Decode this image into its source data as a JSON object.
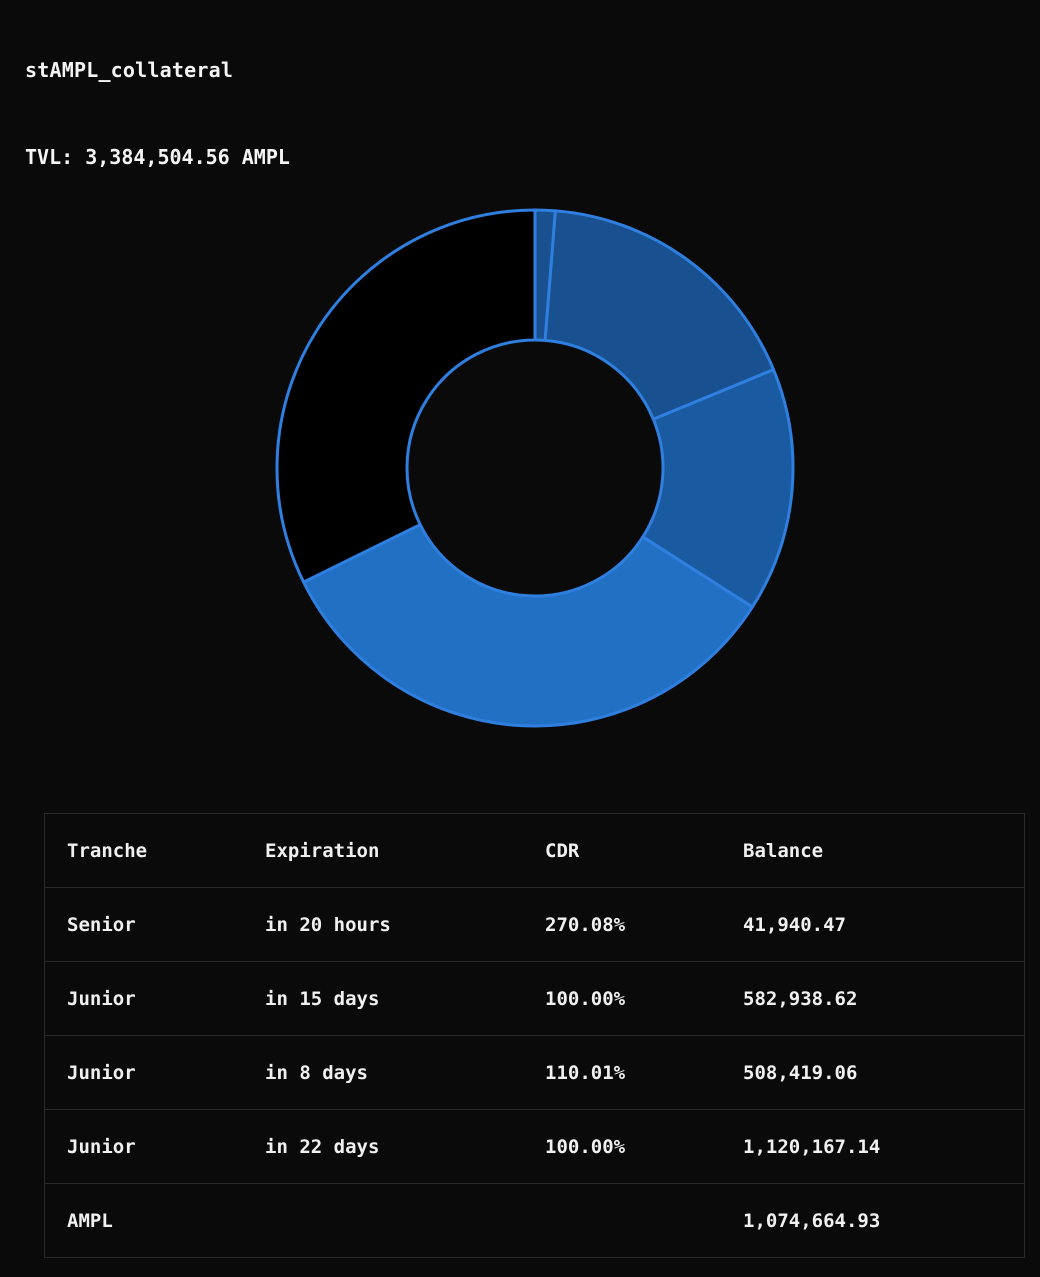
{
  "header": {
    "title": "stAMPL_collateral",
    "tvl_label": "TVL:",
    "tvl_value": "3,384,504.56",
    "tvl_unit": "AMPL"
  },
  "colors": {
    "background": "#0a0a0b",
    "stroke": "#2f7fe0",
    "slice_dark": "#185090",
    "slice_mid": "#1a5aa0",
    "slice_bright": "#2170c4",
    "slice_black": "#000000"
  },
  "chart_data": {
    "type": "pie",
    "values": [
      41940.47,
      582938.62,
      508419.06,
      1120167.14,
      1074664.93
    ],
    "categories": [
      "Senior",
      "Junior",
      "Junior",
      "Junior",
      "AMPL"
    ],
    "slice_colors": [
      "#185090",
      "#185090",
      "#1a5aa0",
      "#2170c4",
      "#000000"
    ],
    "donut": true
  },
  "table": {
    "headers": [
      "Tranche",
      "Expiration",
      "CDR",
      "Balance"
    ],
    "rows": [
      [
        "Senior",
        "in 20 hours",
        "270.08%",
        "41,940.47"
      ],
      [
        "Junior",
        "in 15 days",
        "100.00%",
        "582,938.62"
      ],
      [
        "Junior",
        "in 8 days",
        "110.01%",
        "508,419.06"
      ],
      [
        "Junior",
        "in 22 days",
        "100.00%",
        "1,120,167.14"
      ],
      [
        "AMPL",
        "",
        "",
        "1,074,664.93"
      ]
    ]
  }
}
